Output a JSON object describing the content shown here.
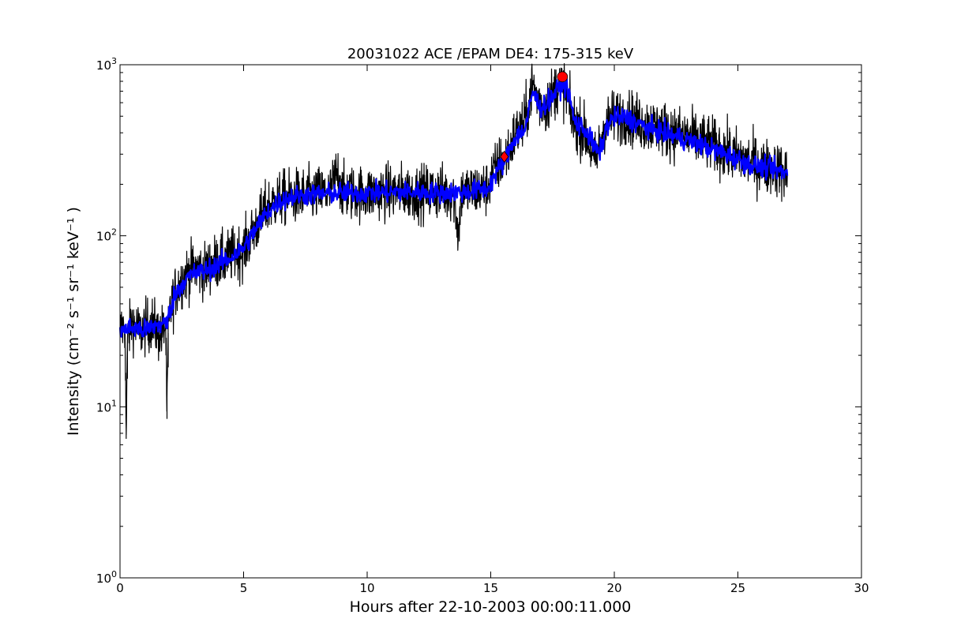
{
  "chart_data": {
    "type": "line",
    "title": "20031022 ACE /EPAM DE4: 175-315 keV",
    "xlabel": "Hours after 22-10-2003 00:00:11.000",
    "ylabel": "Intensity (cm⁻² s⁻¹ sr⁻¹ keV⁻¹ )",
    "xlim": [
      0,
      30
    ],
    "ylim": [
      1,
      1000
    ],
    "yscale": "log",
    "grid": false,
    "legend": "none",
    "x_ticks": [
      0,
      5,
      10,
      15,
      20,
      25,
      30
    ],
    "x_tick_labels": [
      "0",
      "5",
      "10",
      "15",
      "20",
      "25",
      "30"
    ],
    "y_ticks": [
      1,
      10,
      100,
      1000
    ],
    "y_tick_labels": [
      {
        "base": "10",
        "exp": "0"
      },
      {
        "base": "10",
        "exp": "1"
      },
      {
        "base": "10",
        "exp": "2"
      },
      {
        "base": "10",
        "exp": "3"
      }
    ],
    "series": [
      {
        "role": "raw",
        "color": "#000000",
        "x": [
          0,
          0.2,
          0.25,
          0.3,
          0.5,
          0.8,
          1.0,
          1.3,
          1.6,
          1.85,
          1.9,
          1.95,
          2.0,
          2.3,
          2.6,
          3.0,
          3.4,
          3.8,
          4.2,
          4.6,
          5.0,
          5.3,
          5.6,
          6.0,
          6.5,
          7.0,
          7.5,
          8.0,
          8.5,
          8.8,
          9.0,
          9.5,
          10.0,
          10.5,
          11.0,
          11.5,
          12.0,
          12.5,
          13.0,
          13.5,
          13.7,
          13.8,
          14.0,
          14.5,
          14.9,
          15.0,
          15.3,
          15.6,
          15.8,
          16.0,
          16.3,
          16.5,
          16.7,
          16.9,
          17.2,
          17.5,
          17.8,
          18.0,
          18.3,
          18.6,
          18.9,
          19.2,
          19.4,
          19.6,
          20.0,
          20.5,
          21.0,
          21.5,
          22.0,
          22.5,
          23.0,
          23.5,
          24.0,
          24.5,
          25.0,
          25.5,
          26.0,
          26.5,
          27.0
        ],
        "y": [
          28,
          30,
          6.5,
          25,
          32,
          27,
          29,
          31,
          26,
          30,
          8.5,
          27,
          35,
          50,
          58,
          65,
          62,
          70,
          72,
          78,
          82,
          100,
          120,
          150,
          165,
          170,
          172,
          175,
          178,
          240,
          180,
          178,
          176,
          180,
          180,
          182,
          178,
          180,
          180,
          175,
          100,
          178,
          182,
          185,
          190,
          220,
          260,
          290,
          330,
          400,
          430,
          560,
          780,
          620,
          560,
          680,
          770,
          720,
          470,
          430,
          380,
          270,
          330,
          450,
          500,
          500,
          460,
          440,
          420,
          400,
          380,
          360,
          340,
          310,
          290,
          270,
          255,
          250,
          225
        ]
      },
      {
        "role": "smoothed",
        "color": "#0000ff",
        "x": [
          0,
          0.5,
          1.0,
          1.5,
          1.9,
          2.2,
          2.6,
          3.0,
          3.5,
          4.0,
          4.5,
          5.0,
          5.5,
          6.0,
          6.5,
          7.0,
          8.0,
          9.0,
          10.0,
          11.0,
          12.0,
          13.0,
          14.0,
          14.9,
          15.2,
          15.6,
          16.0,
          16.4,
          16.7,
          17.0,
          17.4,
          17.8,
          18.1,
          18.4,
          18.8,
          19.2,
          19.4,
          19.7,
          20.0,
          20.5,
          21.0,
          21.5,
          22.0,
          22.5,
          23.0,
          23.5,
          24.0,
          24.5,
          25.0,
          25.5,
          26.0,
          26.5,
          27.0
        ],
        "y": [
          28,
          29,
          28,
          30,
          31,
          45,
          55,
          60,
          63,
          68,
          75,
          85,
          110,
          140,
          160,
          170,
          175,
          178,
          178,
          180,
          180,
          178,
          180,
          190,
          230,
          280,
          380,
          420,
          700,
          560,
          620,
          760,
          740,
          460,
          420,
          330,
          300,
          440,
          490,
          490,
          450,
          420,
          400,
          380,
          360,
          340,
          320,
          300,
          280,
          260,
          250,
          245,
          230
        ]
      }
    ],
    "markers": [
      {
        "shape": "diamond",
        "color": "#ff0000",
        "x": 15.55,
        "y": 290
      },
      {
        "shape": "circle",
        "color": "#ff0000",
        "x": 17.9,
        "y": 850
      }
    ]
  }
}
